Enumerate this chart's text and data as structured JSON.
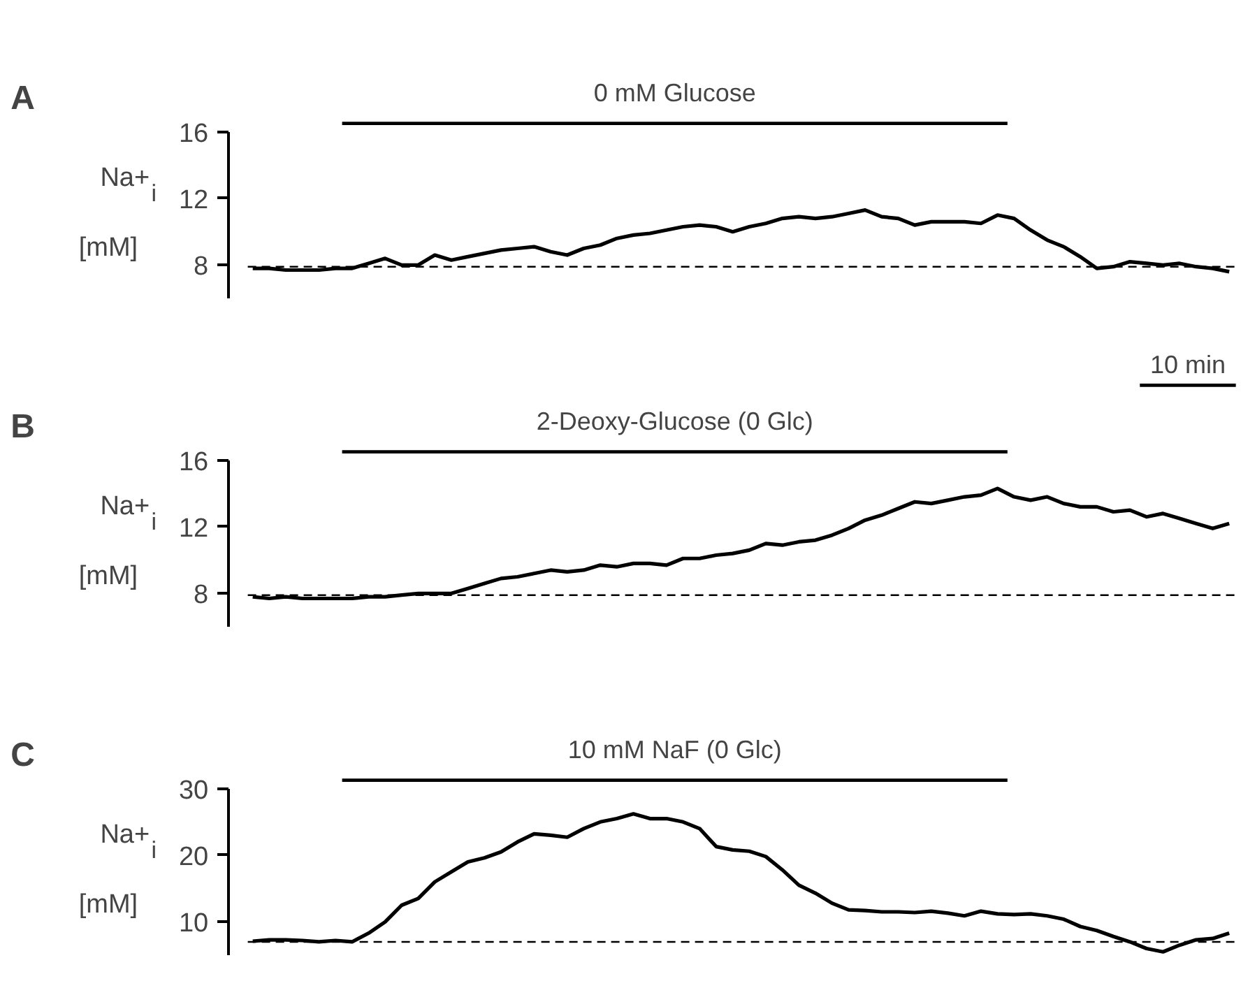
{
  "chart_data": [
    {
      "type": "line",
      "title": "A",
      "ylabel": "Na+$_{i}$ [mM]",
      "categories": [
        null,
        null,
        null,
        null,
        null,
        null,
        null,
        null,
        null,
        null,
        null,
        null,
        null,
        null,
        null,
        null,
        null,
        null,
        null,
        null,
        null,
        null,
        null,
        null,
        null,
        null,
        null,
        null,
        null,
        null,
        null,
        null,
        null,
        null,
        null,
        null,
        null,
        null,
        null,
        null,
        null,
        null,
        null,
        null,
        null,
        null,
        null,
        null,
        null,
        null,
        null,
        null,
        null,
        null,
        null,
        null,
        null,
        null,
        null,
        null
      ],
      "series": [
        {
          "color": "#000000",
          "values": [
            7.8,
            7.8,
            7.7,
            7.7,
            7.7,
            7.8,
            7.8,
            8.1,
            8.4,
            8.0,
            8.0,
            8.6,
            8.3,
            8.5,
            8.7,
            8.9,
            9.0,
            9.1,
            8.8,
            8.6,
            9.0,
            9.2,
            9.6,
            9.8,
            9.9,
            10.1,
            10.3,
            10.4,
            10.3,
            10.0,
            10.3,
            10.5,
            10.8,
            10.9,
            10.8,
            10.9,
            11.1,
            11.3,
            10.9,
            10.8,
            10.4,
            10.6,
            10.6,
            10.6,
            10.5,
            11.0,
            10.8,
            10.1,
            9.5,
            9.1,
            8.5,
            7.8,
            7.9,
            8.2,
            8.1,
            8.0,
            8.1,
            7.9,
            7.8,
            7.6
          ]
        }
      ],
      "ylim": [
        6,
        16
      ],
      "yticks": [
        8,
        12,
        16
      ],
      "tick_labels": "y",
      "grid": false,
      "line_style": "solid",
      "ref_lines": [
        {
          "axis": "y",
          "value": 7.9,
          "line_style": "dashed",
          "color": "#000000"
        }
      ],
      "subtitle": "0 mM Glucose"
    },
    {
      "type": "line",
      "title": "B",
      "ylabel": "Na+$_{i}$ [mM]",
      "categories": [
        null,
        null,
        null,
        null,
        null,
        null,
        null,
        null,
        null,
        null,
        null,
        null,
        null,
        null,
        null,
        null,
        null,
        null,
        null,
        null,
        null,
        null,
        null,
        null,
        null,
        null,
        null,
        null,
        null,
        null,
        null,
        null,
        null,
        null,
        null,
        null,
        null,
        null,
        null,
        null,
        null,
        null,
        null,
        null,
        null,
        null,
        null,
        null,
        null,
        null,
        null,
        null,
        null,
        null,
        null,
        null,
        null,
        null,
        null,
        null
      ],
      "series": [
        {
          "color": "#000000",
          "values": [
            7.8,
            7.7,
            7.8,
            7.7,
            7.7,
            7.7,
            7.7,
            7.8,
            7.8,
            7.9,
            8.0,
            8.0,
            8.0,
            8.3,
            8.6,
            8.9,
            9.0,
            9.2,
            9.4,
            9.3,
            9.4,
            9.7,
            9.6,
            9.8,
            9.8,
            9.7,
            10.1,
            10.1,
            10.3,
            10.4,
            10.6,
            11.0,
            10.9,
            11.1,
            11.2,
            11.5,
            11.9,
            12.4,
            12.7,
            13.1,
            13.5,
            13.4,
            13.6,
            13.8,
            13.9,
            14.3,
            13.8,
            13.6,
            13.8,
            13.4,
            13.2,
            13.2,
            12.9,
            13.0,
            12.6,
            12.8,
            12.5,
            12.2,
            11.9,
            12.2
          ]
        }
      ],
      "ylim": [
        6,
        16
      ],
      "yticks": [
        8,
        12,
        16
      ],
      "tick_labels": "y",
      "grid": false,
      "line_style": "solid",
      "ref_lines": [
        {
          "axis": "y",
          "value": 7.9,
          "line_style": "dashed",
          "color": "#000000"
        }
      ],
      "subtitle": "2-Deoxy-Glucose (0 Glc)",
      "annotations": [
        "10 min"
      ]
    },
    {
      "type": "line",
      "title": "C",
      "ylabel": "Na+$_{i}$ [mM]",
      "categories": [
        null,
        null,
        null,
        null,
        null,
        null,
        null,
        null,
        null,
        null,
        null,
        null,
        null,
        null,
        null,
        null,
        null,
        null,
        null,
        null,
        null,
        null,
        null,
        null,
        null,
        null,
        null,
        null,
        null,
        null,
        null,
        null,
        null,
        null,
        null,
        null,
        null,
        null,
        null,
        null,
        null,
        null,
        null,
        null,
        null,
        null,
        null,
        null,
        null,
        null,
        null,
        null,
        null,
        null,
        null,
        null,
        null,
        null,
        null,
        null
      ],
      "series": [
        {
          "color": "#000000",
          "values": [
            7.1,
            7.3,
            7.3,
            7.2,
            7.0,
            7.2,
            7.0,
            8.3,
            10.0,
            12.5,
            13.5,
            16.0,
            17.5,
            19.0,
            19.6,
            20.5,
            22.0,
            23.2,
            23.0,
            22.7,
            24.0,
            25.0,
            25.5,
            26.2,
            25.5,
            25.5,
            25.0,
            24.0,
            21.3,
            20.8,
            20.6,
            19.8,
            17.8,
            15.5,
            14.3,
            12.8,
            11.8,
            11.7,
            11.5,
            11.5,
            11.4,
            11.6,
            11.3,
            10.9,
            11.6,
            11.2,
            11.1,
            11.2,
            10.9,
            10.4,
            9.3,
            8.7,
            7.8,
            7.0,
            6.0,
            5.5,
            6.5,
            7.3,
            7.5,
            8.3
          ]
        }
      ],
      "ylim": [
        5,
        30
      ],
      "yticks": [
        10,
        20,
        30
      ],
      "tick_labels": "y",
      "grid": false,
      "line_style": "solid",
      "ref_lines": [
        {
          "axis": "y",
          "value": 7.0,
          "line_style": "dashed",
          "color": "#000000"
        }
      ],
      "subtitle": "10 mM NaF (0 Glc)"
    }
  ]
}
